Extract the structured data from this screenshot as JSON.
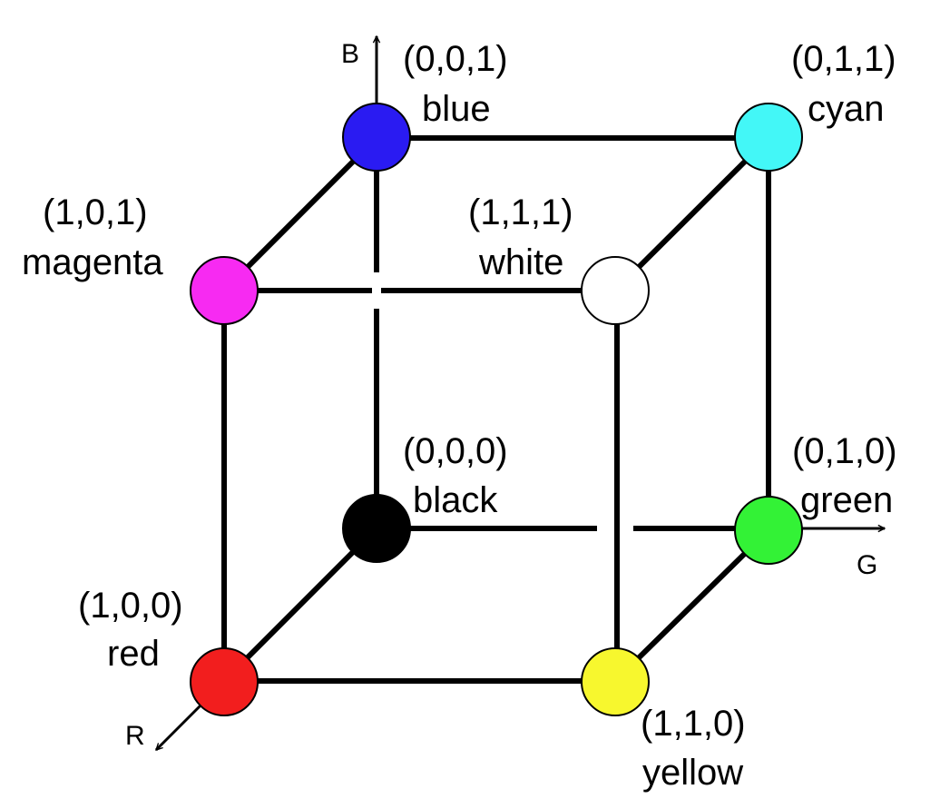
{
  "axes": {
    "b": "B",
    "g": "G",
    "r": "R"
  },
  "corners": {
    "blue": {
      "coord": "(0,0,1)",
      "name": "blue",
      "color": "#2a1bf2"
    },
    "cyan": {
      "coord": "(0,1,1)",
      "name": "cyan",
      "color": "#43f7f7"
    },
    "magenta": {
      "coord": "(1,0,1)",
      "name": "magenta",
      "color": "#f72af2"
    },
    "white": {
      "coord": "(1,1,1)",
      "name": "white",
      "color": "#ffffff"
    },
    "black": {
      "coord": "(0,0,0)",
      "name": "black",
      "color": "#000000"
    },
    "green": {
      "coord": "(0,1,0)",
      "name": "green",
      "color": "#33f236"
    },
    "red": {
      "coord": "(1,0,0)",
      "name": "red",
      "color": "#f21e1e"
    },
    "yellow": {
      "coord": "(1,1,0)",
      "name": "yellow",
      "color": "#f7f72e"
    }
  }
}
